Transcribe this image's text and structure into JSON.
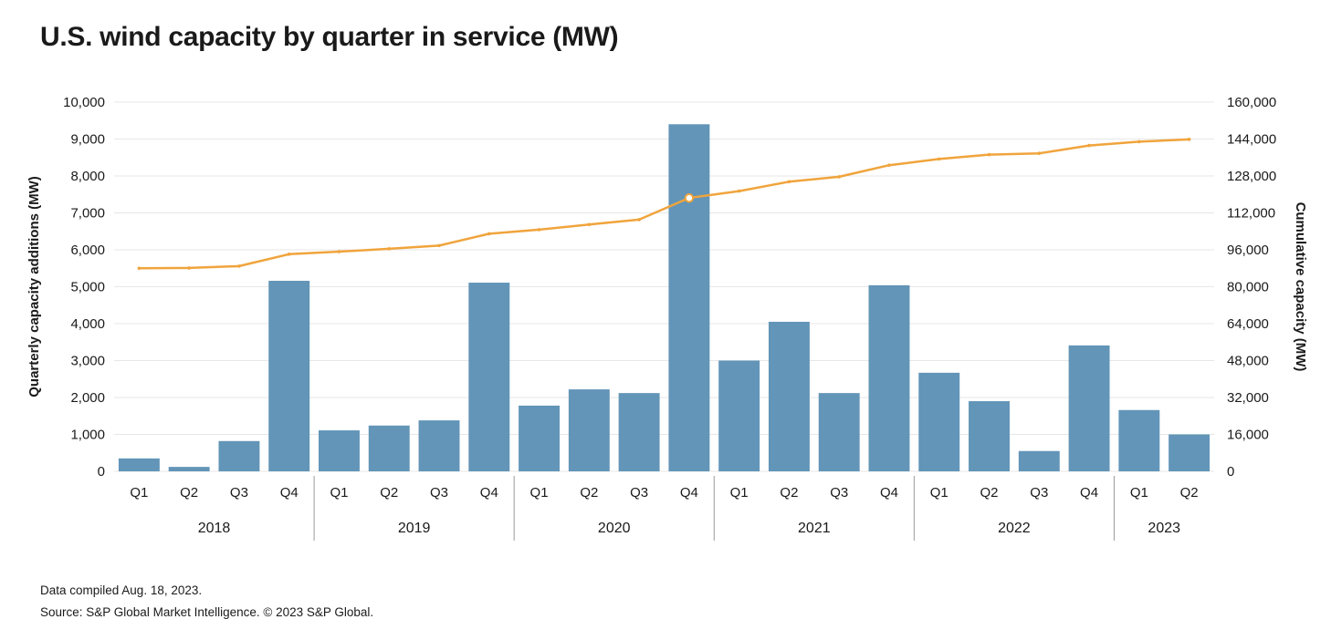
{
  "footnotes": [
    "Data compiled Aug. 18, 2023.",
    "Source: S&P Global Market Intelligence. © 2023 S&P Global."
  ],
  "chart_data": {
    "type": "bar+line",
    "title": "U.S. wind capacity by quarter in service (MW)",
    "groups": [
      {
        "year": "2018",
        "quarters": [
          "Q1",
          "Q2",
          "Q3",
          "Q4"
        ]
      },
      {
        "year": "2019",
        "quarters": [
          "Q1",
          "Q2",
          "Q3",
          "Q4"
        ]
      },
      {
        "year": "2020",
        "quarters": [
          "Q1",
          "Q2",
          "Q3",
          "Q4"
        ]
      },
      {
        "year": "2021",
        "quarters": [
          "Q1",
          "Q2",
          "Q3",
          "Q4"
        ]
      },
      {
        "year": "2022",
        "quarters": [
          "Q1",
          "Q2",
          "Q3",
          "Q4"
        ]
      },
      {
        "year": "2023",
        "quarters": [
          "Q1",
          "Q2"
        ]
      }
    ],
    "series": [
      {
        "name": "Quarterly capacity additions (MW)",
        "type": "bar",
        "axis": "left",
        "color": "#6295b8",
        "values": [
          350,
          120,
          820,
          5160,
          1110,
          1240,
          1380,
          5110,
          1780,
          2220,
          2120,
          9400,
          3000,
          4050,
          2120,
          5040,
          2670,
          1900,
          550,
          3410,
          1660,
          1000
        ]
      },
      {
        "name": "Cumulative capacity (MW)",
        "type": "line",
        "axis": "right",
        "color": "#f0a43c",
        "values": [
          88000,
          88120,
          88940,
          94100,
          95210,
          96450,
          97830,
          102940,
          104720,
          106940,
          109060,
          118460,
          121460,
          125510,
          127630,
          132670,
          135340,
          137240,
          137790,
          141200,
          142860,
          143860
        ],
        "highlight_index": 11
      }
    ],
    "left_axis": {
      "label": "Quarterly capacity additions (MW)",
      "min": 0,
      "max": 10000,
      "step": 1000
    },
    "right_axis": {
      "label": "Cumulative capacity (MW)",
      "min": 0,
      "max": 160000,
      "step": 16000
    },
    "grid": true,
    "legend": "none",
    "colors": {
      "gridline": "#e7e7e7",
      "separator": "#9b9b9b",
      "text": "#1a1a1a",
      "background": "#ffffff"
    }
  }
}
